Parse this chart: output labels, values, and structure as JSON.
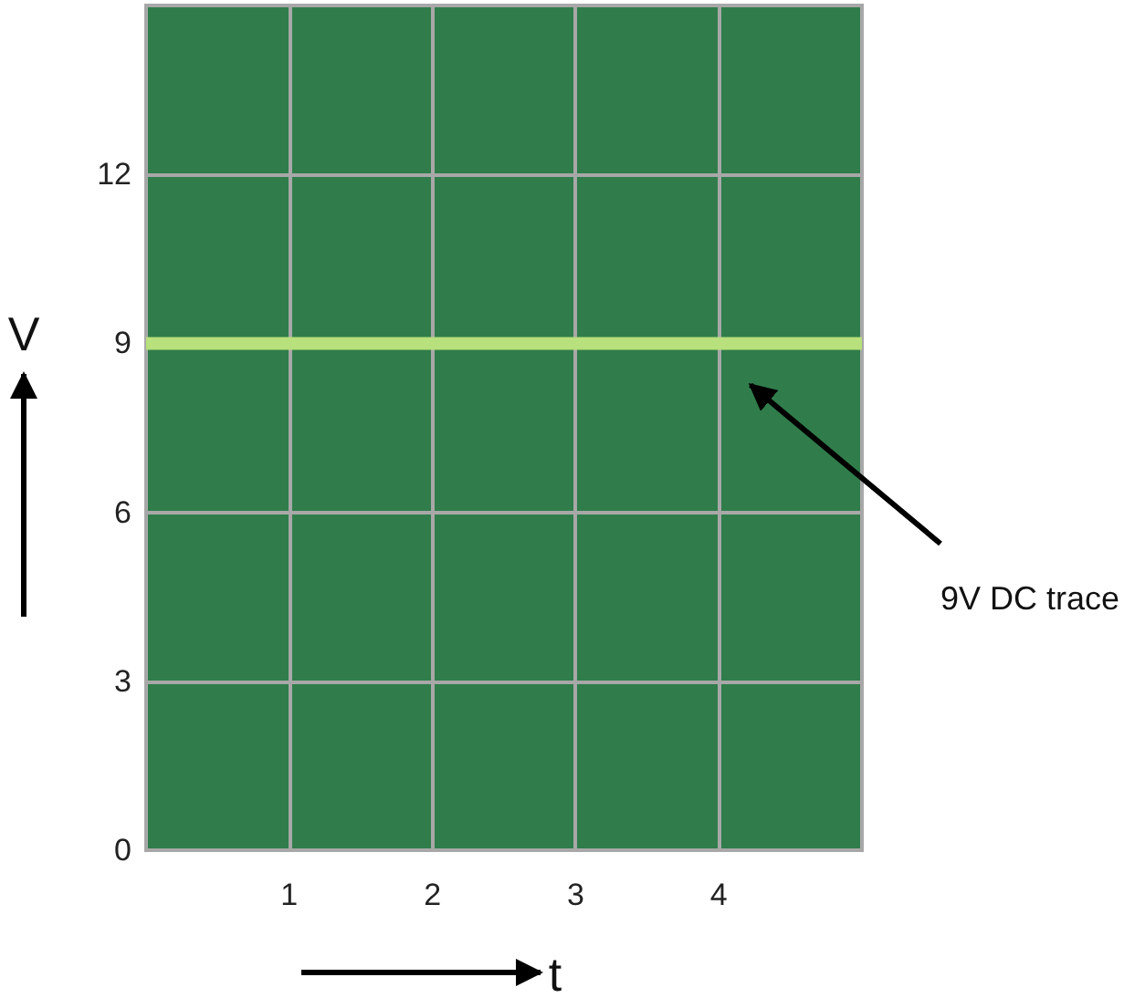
{
  "chart_data": {
    "type": "line",
    "xlabel": "t",
    "ylabel": "V",
    "x": [
      0,
      5
    ],
    "series": [
      {
        "color": "#b8e07c",
        "values": [
          9,
          9
        ]
      }
    ],
    "xlim": [
      0,
      5
    ],
    "xticks": [
      1,
      2,
      3,
      4
    ],
    "ylim": [
      0,
      15
    ],
    "yticks": [
      0,
      3,
      6,
      9,
      12
    ],
    "grid": true,
    "marker": "none",
    "line_style": "solid",
    "annotations": [
      "9V DC trace"
    ]
  }
}
